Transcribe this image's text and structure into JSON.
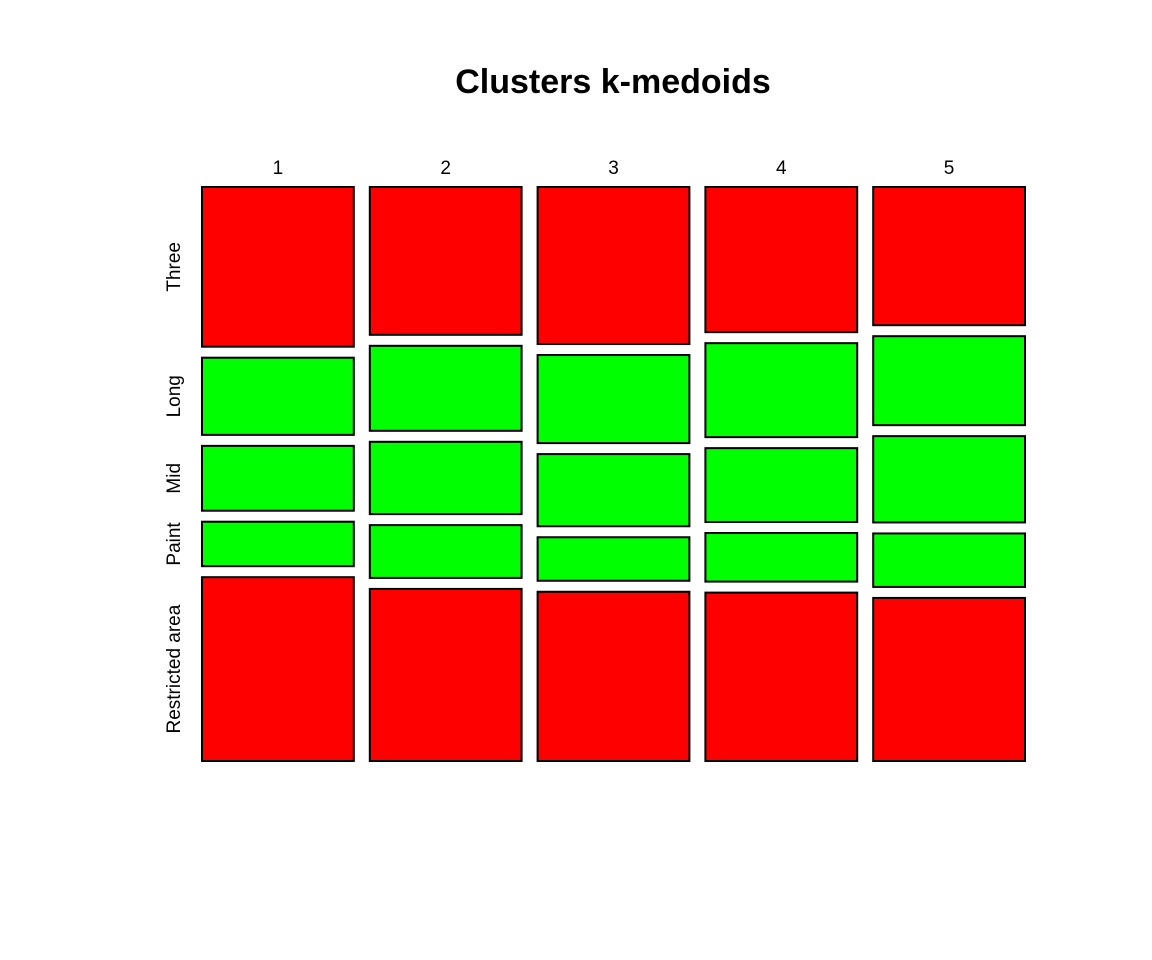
{
  "chart_data": {
    "type": "mosaic",
    "title": "Clusters k-medoids",
    "categories": [
      "1",
      "2",
      "3",
      "4",
      "5"
    ],
    "series": [
      {
        "name": "Three",
        "values": [
          0.298,
          0.28,
          0.296,
          0.275,
          0.261
        ]
      },
      {
        "name": "Long",
        "values": [
          0.144,
          0.161,
          0.166,
          0.178,
          0.168
        ]
      },
      {
        "name": "Mid",
        "values": [
          0.121,
          0.137,
          0.136,
          0.14,
          0.163
        ]
      },
      {
        "name": "Paint",
        "values": [
          0.083,
          0.1,
          0.082,
          0.092,
          0.101
        ]
      },
      {
        "name": "Restricted area",
        "values": [
          0.343,
          0.326,
          0.319,
          0.319,
          0.308
        ]
      }
    ],
    "colors": {
      "Three": "#ff0000",
      "Long": "#00ff00",
      "Mid": "#00ff00",
      "Paint": "#00ff00",
      "Restricted area": "#ff0000"
    },
    "column_widths": [
      0.2,
      0.2,
      0.2,
      0.2,
      0.2
    ],
    "legend": "none",
    "grid": false
  }
}
